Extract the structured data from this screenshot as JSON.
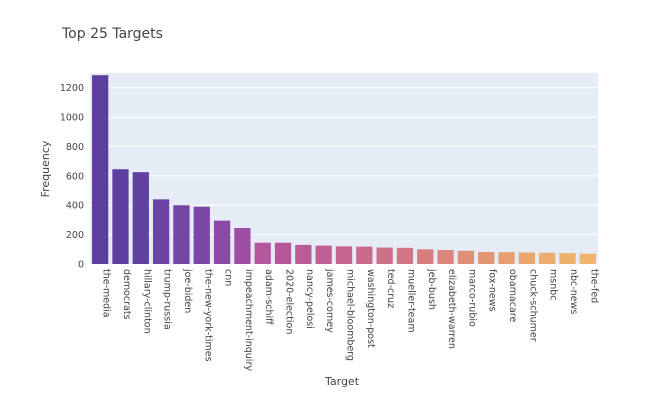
{
  "chart_data": {
    "type": "bar",
    "title": "Top 25 Targets",
    "xlabel": "Target",
    "ylabel": "Frequency",
    "ylim": [
      0,
      1300
    ],
    "yticks": [
      0,
      200,
      400,
      600,
      800,
      1000,
      1200
    ],
    "grid": true,
    "legend": "none",
    "categories": [
      "the-media",
      "democrats",
      "hillary-clinton",
      "trump-russia",
      "joe-biden",
      "the-new-york-times",
      "cnn",
      "impeachment-inquiry",
      "adam-schiff",
      "2020-election",
      "nancy-pelosi",
      "james-comey",
      "michael-bloomberg",
      "washington-post",
      "ted-cruz",
      "mueller-team",
      "jeb-bush",
      "elizabeth-warren",
      "marco-rubio",
      "fox-news",
      "obamacare",
      "chuck-schumer",
      "msnbc",
      "nbc-news",
      "the-fed"
    ],
    "values": [
      1285,
      645,
      625,
      440,
      400,
      390,
      295,
      245,
      145,
      145,
      130,
      125,
      120,
      118,
      112,
      110,
      100,
      95,
      90,
      82,
      80,
      78,
      76,
      74,
      70
    ],
    "colors": [
      "#5b3f9e",
      "#5d409f",
      "#5f41a0",
      "#6c44a4",
      "#7346a5",
      "#7a47a6",
      "#8a4aa5",
      "#9d4ea3",
      "#b4579c",
      "#b5589b",
      "#bb5b98",
      "#c05f94",
      "#c56490",
      "#c9698c",
      "#cd6f87",
      "#d27584",
      "#d67d80",
      "#db857c",
      "#df8e78",
      "#e39675",
      "#e69e72",
      "#e9a66f",
      "#ebac6e",
      "#edb26c",
      "#eeb66b"
    ],
    "plot_background": "#e5ecf6",
    "grid_color": "#ffffff"
  }
}
